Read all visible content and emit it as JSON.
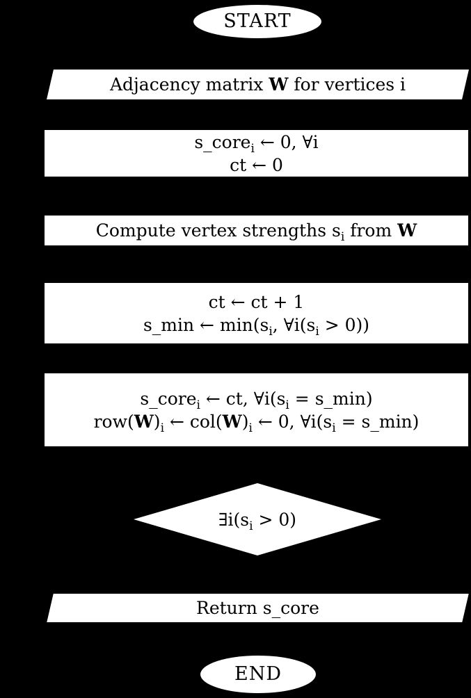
{
  "canvas": {
    "background_color": "#000000",
    "shape_fill_color": "#ffffff",
    "text_color": "#000000"
  },
  "nodes": [
    {
      "id": "start",
      "type": "terminator",
      "label": "START"
    },
    {
      "id": "input-adjacency",
      "type": "io-parallelogram",
      "lines": [
        [
          {
            "t": "Adjacency matrix "
          },
          {
            "t": "W",
            "b": true
          },
          {
            "t": " for vertices i"
          }
        ]
      ]
    },
    {
      "id": "init",
      "type": "process",
      "lines": [
        [
          {
            "t": "s_core"
          },
          {
            "t": "i",
            "sub": true
          },
          {
            "t": " ← 0, ∀i"
          }
        ],
        [
          {
            "t": "ct ← 0"
          }
        ]
      ]
    },
    {
      "id": "compute-strengths",
      "type": "process",
      "lines": [
        [
          {
            "t": "Compute vertex strengths s"
          },
          {
            "t": "i",
            "sub": true
          },
          {
            "t": " from "
          },
          {
            "t": "W",
            "b": true
          }
        ]
      ]
    },
    {
      "id": "iterate",
      "type": "process",
      "lines": [
        [
          {
            "t": "ct ← ct + 1"
          }
        ],
        [
          {
            "t": "s_min ← min(s"
          },
          {
            "t": "i",
            "sub": true
          },
          {
            "t": ", ∀i(s"
          },
          {
            "t": "i",
            "sub": true
          },
          {
            "t": " > 0))"
          }
        ]
      ]
    },
    {
      "id": "assign-core",
      "type": "process",
      "lines": [
        [
          {
            "t": "s_core"
          },
          {
            "t": "i",
            "sub": true
          },
          {
            "t": " ← ct, ∀i(s"
          },
          {
            "t": "i",
            "sub": true
          },
          {
            "t": " = s_min)"
          }
        ],
        [
          {
            "t": "row("
          },
          {
            "t": "W",
            "b": true
          },
          {
            "t": ")"
          },
          {
            "t": "i",
            "sub": true
          },
          {
            "t": " ← col("
          },
          {
            "t": "W",
            "b": true
          },
          {
            "t": ")"
          },
          {
            "t": "i",
            "sub": true
          },
          {
            "t": " ← 0, ∀i(s"
          },
          {
            "t": "i",
            "sub": true
          },
          {
            "t": " = s_min)"
          }
        ]
      ]
    },
    {
      "id": "loop-decision",
      "type": "decision",
      "lines": [
        [
          {
            "t": "∃i(s"
          },
          {
            "t": "i",
            "sub": true
          },
          {
            "t": " > 0)"
          }
        ]
      ]
    },
    {
      "id": "return-score",
      "type": "io-parallelogram",
      "lines": [
        [
          {
            "t": "Return s_core"
          }
        ]
      ]
    },
    {
      "id": "end",
      "type": "terminator",
      "label": "END"
    }
  ]
}
